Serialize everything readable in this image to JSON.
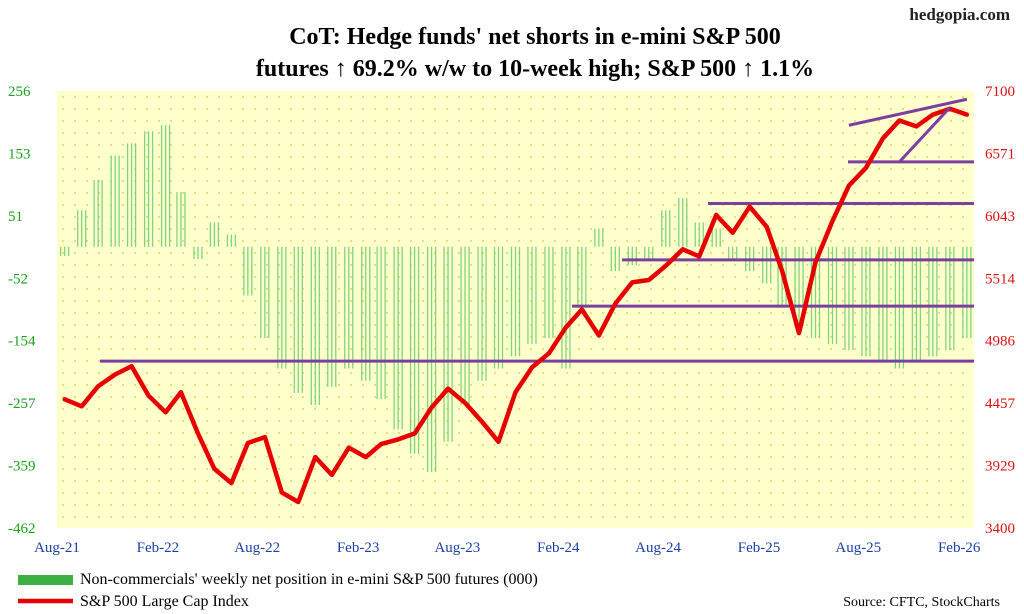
{
  "site": "hedgopia.com",
  "title_line1": "CoT: Hedge funds' net shorts in e-mini S&P 500",
  "title_line2": "futures ↑ 69.2% w/w to 10-week high; S&P 500 ↑ 1.1%",
  "source": "Source: CFTC, StockCharts",
  "legend": [
    {
      "label": "Non-commercials' weekly net position in e-mini S&P 500 futures (000)",
      "color": "#3cb043"
    },
    {
      "label": "S&P 500 Large Cap Index",
      "color": "#e60000"
    }
  ],
  "colors": {
    "bars": "#7fd47f",
    "line": "#e60000",
    "support": "#7b3fa0",
    "plot_bg": "#ffffcc",
    "dots": "#d9d966"
  },
  "chart_data": {
    "type": "line",
    "x_ticks": [
      "Aug-21",
      "Feb-22",
      "Aug-22",
      "Feb-23",
      "Aug-23",
      "Feb-24",
      "Aug-24",
      "Feb-25",
      "Aug-25",
      "Feb-26"
    ],
    "x_range": [
      "2021-08-01",
      "2026-02-28"
    ],
    "left_axis": {
      "ticks": [
        "256",
        "153",
        "51",
        "-52",
        "-154",
        "-257",
        "-359",
        "-462"
      ],
      "ylim": [
        -462,
        256
      ]
    },
    "right_axis": {
      "ticks": [
        "7100",
        "6571",
        "6043",
        "5514",
        "4986",
        "4457",
        "3929",
        "3400"
      ],
      "ylim": [
        3400,
        7100
      ]
    },
    "series": [
      {
        "name": "Non-commercials' weekly net position in e-mini S&P 500 futures (000)",
        "type": "bar",
        "axis": "left",
        "x": [
          "2021-08",
          "2021-09",
          "2021-10",
          "2021-11",
          "2021-12",
          "2022-01",
          "2022-02",
          "2022-03",
          "2022-04",
          "2022-05",
          "2022-06",
          "2022-07",
          "2022-08",
          "2022-09",
          "2022-10",
          "2022-11",
          "2022-12",
          "2023-01",
          "2023-02",
          "2023-03",
          "2023-04",
          "2023-05",
          "2023-06",
          "2023-07",
          "2023-08",
          "2023-09",
          "2023-10",
          "2023-11",
          "2023-12",
          "2024-01",
          "2024-02",
          "2024-03",
          "2024-04",
          "2024-05",
          "2024-06",
          "2024-07",
          "2024-08",
          "2024-09",
          "2024-10",
          "2024-11",
          "2024-12",
          "2025-01",
          "2025-02",
          "2025-03",
          "2025-04",
          "2025-05",
          "2025-06",
          "2025-07",
          "2025-08",
          "2025-09",
          "2025-10",
          "2025-11",
          "2025-12",
          "2026-01",
          "2026-02"
        ],
        "values": [
          -15,
          60,
          110,
          150,
          170,
          190,
          200,
          90,
          -20,
          40,
          20,
          -80,
          -150,
          -200,
          -240,
          -260,
          -230,
          -200,
          -220,
          -250,
          -300,
          -340,
          -370,
          -320,
          -260,
          -220,
          -200,
          -180,
          -160,
          -150,
          -200,
          -100,
          30,
          -40,
          -30,
          -20,
          60,
          80,
          40,
          30,
          -20,
          -40,
          -60,
          -100,
          -130,
          -150,
          -160,
          -170,
          -180,
          -190,
          -200,
          -190,
          -180,
          -170,
          -150
        ]
      },
      {
        "name": "S&P 500 Large Cap Index",
        "type": "line",
        "axis": "right",
        "x": [
          "2021-08",
          "2021-09",
          "2021-10",
          "2021-11",
          "2021-12",
          "2022-01",
          "2022-02",
          "2022-03",
          "2022-04",
          "2022-05",
          "2022-06",
          "2022-07",
          "2022-08",
          "2022-09",
          "2022-10",
          "2022-11",
          "2022-12",
          "2023-01",
          "2023-02",
          "2023-03",
          "2023-04",
          "2023-05",
          "2023-06",
          "2023-07",
          "2023-08",
          "2023-09",
          "2023-10",
          "2023-11",
          "2023-12",
          "2024-01",
          "2024-02",
          "2024-03",
          "2024-04",
          "2024-05",
          "2024-06",
          "2024-07",
          "2024-08",
          "2024-09",
          "2024-10",
          "2024-11",
          "2024-12",
          "2025-01",
          "2025-02",
          "2025-03",
          "2025-04",
          "2025-05",
          "2025-06",
          "2025-07",
          "2025-08",
          "2025-09",
          "2025-10",
          "2025-11",
          "2025-12",
          "2026-01",
          "2026-02"
        ],
        "values": [
          4490,
          4430,
          4600,
          4700,
          4770,
          4520,
          4380,
          4550,
          4200,
          3900,
          3780,
          4120,
          4170,
          3700,
          3620,
          4000,
          3850,
          4080,
          4000,
          4110,
          4150,
          4200,
          4420,
          4580,
          4460,
          4300,
          4130,
          4550,
          4760,
          4880,
          5100,
          5250,
          5030,
          5300,
          5480,
          5500,
          5620,
          5760,
          5700,
          6050,
          5900,
          6120,
          5950,
          5580,
          5050,
          5650,
          6000,
          6300,
          6450,
          6700,
          6850,
          6800,
          6900,
          6950,
          6900
        ]
      }
    ],
    "support_lines_right_axis": [
      4813,
      5279,
      5670,
      6147,
      6500
    ],
    "channel_upper": [
      [
        "2025-07",
        6810
      ],
      [
        "2026-02",
        7030
      ]
    ],
    "channel_lower": [
      [
        "2025-10",
        6500
      ],
      [
        "2026-01",
        6960
      ]
    ],
    "grid": "dotted",
    "legend_position": "bottom-left"
  }
}
